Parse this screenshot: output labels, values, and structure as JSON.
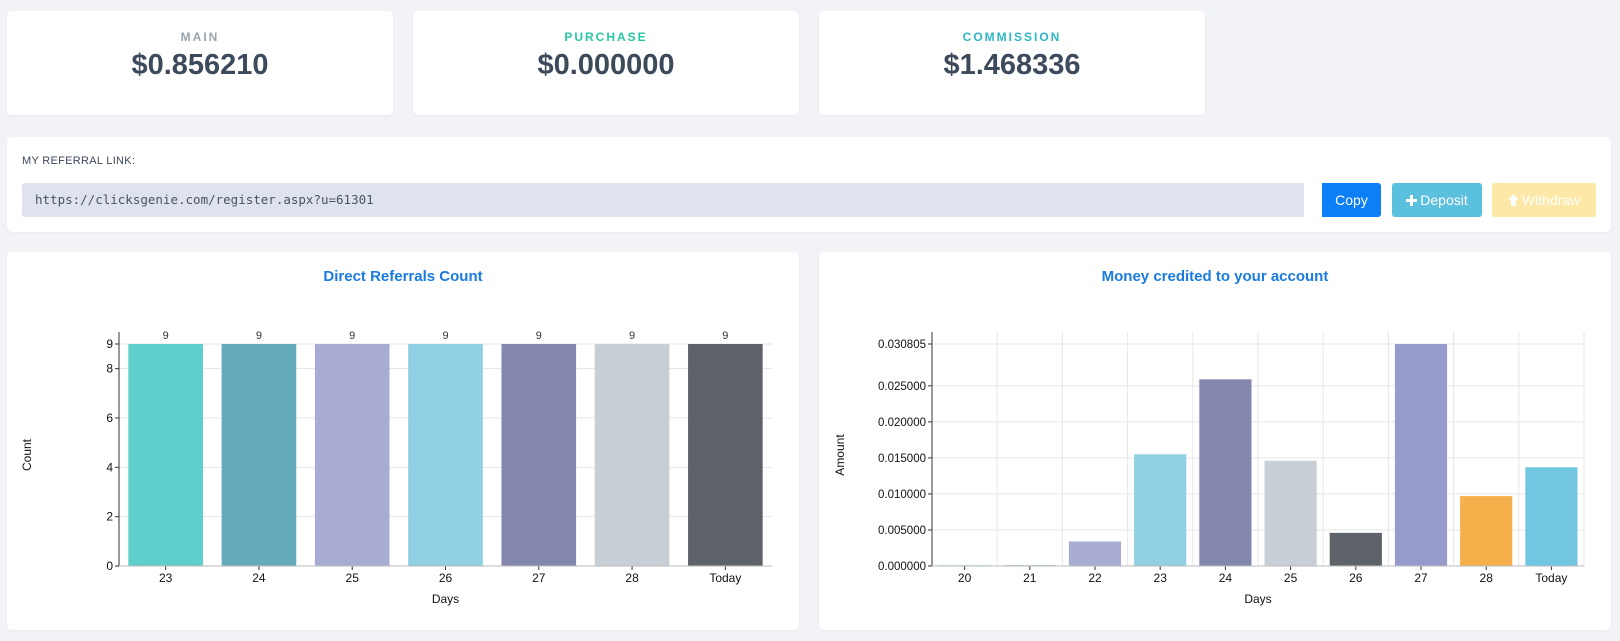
{
  "stats": [
    {
      "label": "MAIN",
      "value": "$0.856210",
      "color": "#9aa3ad"
    },
    {
      "label": "PURCHASE",
      "value": "$0.000000",
      "color": "#28c6a4"
    },
    {
      "label": "COMMISSION",
      "value": "$1.468336",
      "color": "#2fb6c6"
    }
  ],
  "referral": {
    "title": "MY REFERRAL LINK:",
    "link": "https://clicksgenie.com/register.aspx?u=61301",
    "copy_label": "Copy",
    "deposit_label": "Deposit",
    "withdraw_label": "Withdraw"
  },
  "chart_data": [
    {
      "type": "bar",
      "title": "Direct Referrals Count",
      "xlabel": "Days",
      "ylabel": "Count",
      "categories": [
        "23",
        "24",
        "25",
        "26",
        "27",
        "28",
        "Today"
      ],
      "values": [
        9,
        9,
        9,
        9,
        9,
        9,
        9
      ],
      "data_labels": [
        "9",
        "9",
        "9",
        "9",
        "9",
        "9",
        "9"
      ],
      "yticks": [
        0,
        2,
        4,
        6,
        8,
        9
      ],
      "ylim": [
        0,
        9
      ],
      "grid": "horizontal",
      "colors": [
        "#5ecfcb",
        "#66aabe",
        "#a8acd4",
        "#8fd1e2",
        "#8387ad",
        "#c8ced6",
        "#5e6269"
      ]
    },
    {
      "type": "bar",
      "title": "Money credited to your account",
      "xlabel": "Days",
      "ylabel": "Amount",
      "categories": [
        "20",
        "21",
        "22",
        "23",
        "24",
        "25",
        "26",
        "27",
        "28",
        "Today"
      ],
      "values": [
        0.0001,
        0.0001,
        0.0034,
        0.0155,
        0.0259,
        0.0146,
        0.0046,
        0.030805,
        0.0097,
        0.0137
      ],
      "ytick_labels": [
        "0.000000",
        "0.005000",
        "0.010000",
        "0.015000",
        "0.020000",
        "0.025000",
        "0.030805"
      ],
      "yticks": [
        0,
        0.005,
        0.01,
        0.015,
        0.02,
        0.025,
        0.030805
      ],
      "ylim": [
        0,
        0.030805
      ],
      "grid": "both",
      "colors": [
        "#5ecfcb",
        "#66aabe",
        "#a8acd4",
        "#8fd1e2",
        "#8387ad",
        "#c8ced6",
        "#5e6269",
        "#979bcc",
        "#f5b04c",
        "#73c6e2"
      ]
    }
  ]
}
